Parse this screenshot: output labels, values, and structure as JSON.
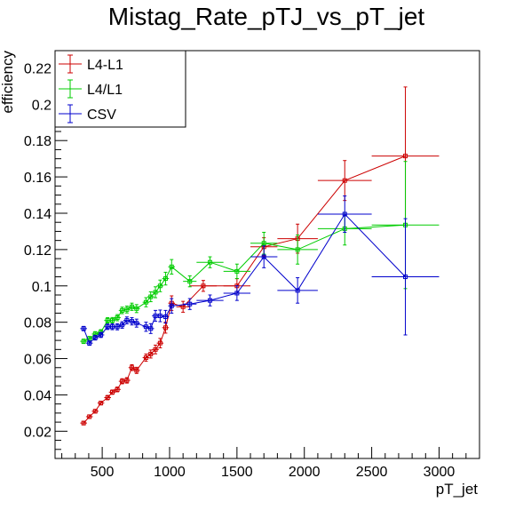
{
  "chart_data": {
    "type": "line",
    "title": "Mistag_Rate_pTJ_vs_pT_jet",
    "xlabel": "pT_jet",
    "ylabel": "efficiency",
    "xlim": [
      150,
      3300
    ],
    "ylim": [
      0.005,
      0.2295
    ],
    "x_ticks": [
      500,
      1000,
      1500,
      2000,
      2500,
      3000
    ],
    "x_tick_labels": [
      "500",
      "1000",
      "1500",
      "2000",
      "2500",
      "3000"
    ],
    "y_ticks": [
      0.02,
      0.04,
      0.06,
      0.08,
      0.1,
      0.12,
      0.14,
      0.16,
      0.18,
      0.2,
      0.22
    ],
    "y_tick_labels": [
      "0.02",
      "0.04",
      "0.06",
      "0.08",
      "0.1",
      "0.12",
      "0.14",
      "0.16",
      "0.18",
      "0.2",
      "0.22"
    ],
    "grid": false,
    "legend_position": "top-left",
    "series": [
      {
        "name": "L4-L1",
        "color": "#cc0000",
        "points": [
          {
            "x": 362,
            "y": 0.0245,
            "xerr": 25,
            "yerr": 0.001
          },
          {
            "x": 405,
            "y": 0.028,
            "xerr": 25,
            "yerr": 0.001
          },
          {
            "x": 448,
            "y": 0.031,
            "xerr": 25,
            "yerr": 0.001
          },
          {
            "x": 490,
            "y": 0.0355,
            "xerr": 25,
            "yerr": 0.001
          },
          {
            "x": 540,
            "y": 0.0385,
            "xerr": 25,
            "yerr": 0.0012
          },
          {
            "x": 575,
            "y": 0.0415,
            "xerr": 25,
            "yerr": 0.0012
          },
          {
            "x": 612,
            "y": 0.043,
            "xerr": 25,
            "yerr": 0.0013
          },
          {
            "x": 648,
            "y": 0.0475,
            "xerr": 25,
            "yerr": 0.0014
          },
          {
            "x": 683,
            "y": 0.048,
            "xerr": 25,
            "yerr": 0.0015
          },
          {
            "x": 720,
            "y": 0.055,
            "xerr": 25,
            "yerr": 0.0016
          },
          {
            "x": 755,
            "y": 0.0535,
            "xerr": 25,
            "yerr": 0.0017
          },
          {
            "x": 825,
            "y": 0.0605,
            "xerr": 25,
            "yerr": 0.002
          },
          {
            "x": 860,
            "y": 0.0625,
            "xerr": 25,
            "yerr": 0.0022
          },
          {
            "x": 895,
            "y": 0.065,
            "xerr": 25,
            "yerr": 0.0024
          },
          {
            "x": 930,
            "y": 0.0685,
            "xerr": 25,
            "yerr": 0.0026
          },
          {
            "x": 970,
            "y": 0.077,
            "xerr": 25,
            "yerr": 0.003
          },
          {
            "x": 1015,
            "y": 0.0905,
            "xerr": 25,
            "yerr": 0.004
          },
          {
            "x": 1100,
            "y": 0.0885,
            "xerr": 50,
            "yerr": 0.003
          },
          {
            "x": 1250,
            "y": 0.1,
            "xerr": 100,
            "yerr": 0.003
          },
          {
            "x": 1500,
            "y": 0.1,
            "xerr": 100,
            "yerr": 0.004
          },
          {
            "x": 1700,
            "y": 0.1215,
            "xerr": 100,
            "yerr": 0.005
          },
          {
            "x": 1950,
            "y": 0.126,
            "xerr": 150,
            "yerr": 0.008
          },
          {
            "x": 2300,
            "y": 0.158,
            "xerr": 200,
            "yerr": 0.011
          },
          {
            "x": 2750,
            "y": 0.1715,
            "xerr": 250,
            "yerr": 0.038
          }
        ]
      },
      {
        "name": "L4/L1",
        "color": "#00cc00",
        "points": [
          {
            "x": 362,
            "y": 0.0695,
            "xerr": 25,
            "yerr": 0.0012
          },
          {
            "x": 405,
            "y": 0.071,
            "xerr": 25,
            "yerr": 0.0012
          },
          {
            "x": 448,
            "y": 0.0735,
            "xerr": 25,
            "yerr": 0.0013
          },
          {
            "x": 490,
            "y": 0.0745,
            "xerr": 25,
            "yerr": 0.0014
          },
          {
            "x": 540,
            "y": 0.081,
            "xerr": 25,
            "yerr": 0.0015
          },
          {
            "x": 575,
            "y": 0.081,
            "xerr": 25,
            "yerr": 0.0016
          },
          {
            "x": 612,
            "y": 0.0825,
            "xerr": 25,
            "yerr": 0.0017
          },
          {
            "x": 648,
            "y": 0.0865,
            "xerr": 25,
            "yerr": 0.0018
          },
          {
            "x": 683,
            "y": 0.087,
            "xerr": 25,
            "yerr": 0.0019
          },
          {
            "x": 720,
            "y": 0.0885,
            "xerr": 25,
            "yerr": 0.002
          },
          {
            "x": 755,
            "y": 0.0875,
            "xerr": 25,
            "yerr": 0.0022
          },
          {
            "x": 825,
            "y": 0.091,
            "xerr": 25,
            "yerr": 0.0025
          },
          {
            "x": 860,
            "y": 0.094,
            "xerr": 25,
            "yerr": 0.0027
          },
          {
            "x": 895,
            "y": 0.0965,
            "xerr": 25,
            "yerr": 0.003
          },
          {
            "x": 930,
            "y": 0.1,
            "xerr": 25,
            "yerr": 0.0032
          },
          {
            "x": 970,
            "y": 0.104,
            "xerr": 25,
            "yerr": 0.0035
          },
          {
            "x": 1015,
            "y": 0.1105,
            "xerr": 25,
            "yerr": 0.004
          },
          {
            "x": 1150,
            "y": 0.1025,
            "xerr": 50,
            "yerr": 0.003
          },
          {
            "x": 1300,
            "y": 0.113,
            "xerr": 100,
            "yerr": 0.003
          },
          {
            "x": 1500,
            "y": 0.108,
            "xerr": 100,
            "yerr": 0.004
          },
          {
            "x": 1700,
            "y": 0.1235,
            "xerr": 100,
            "yerr": 0.006
          },
          {
            "x": 1950,
            "y": 0.12,
            "xerr": 150,
            "yerr": 0.008
          },
          {
            "x": 2300,
            "y": 0.1315,
            "xerr": 200,
            "yerr": 0.009
          },
          {
            "x": 2750,
            "y": 0.1335,
            "xerr": 250,
            "yerr": 0.035
          }
        ]
      },
      {
        "name": "CSV",
        "color": "#0000cc",
        "points": [
          {
            "x": 362,
            "y": 0.0765,
            "xerr": 25,
            "yerr": 0.0012
          },
          {
            "x": 405,
            "y": 0.0685,
            "xerr": 25,
            "yerr": 0.0012
          },
          {
            "x": 448,
            "y": 0.0715,
            "xerr": 25,
            "yerr": 0.0013
          },
          {
            "x": 490,
            "y": 0.073,
            "xerr": 25,
            "yerr": 0.0014
          },
          {
            "x": 540,
            "y": 0.0775,
            "xerr": 25,
            "yerr": 0.0015
          },
          {
            "x": 575,
            "y": 0.0775,
            "xerr": 25,
            "yerr": 0.0016
          },
          {
            "x": 612,
            "y": 0.0775,
            "xerr": 25,
            "yerr": 0.0017
          },
          {
            "x": 648,
            "y": 0.0785,
            "xerr": 25,
            "yerr": 0.0018
          },
          {
            "x": 683,
            "y": 0.081,
            "xerr": 25,
            "yerr": 0.0019
          },
          {
            "x": 720,
            "y": 0.0805,
            "xerr": 25,
            "yerr": 0.002
          },
          {
            "x": 755,
            "y": 0.0795,
            "xerr": 25,
            "yerr": 0.0022
          },
          {
            "x": 825,
            "y": 0.0775,
            "xerr": 25,
            "yerr": 0.0025
          },
          {
            "x": 860,
            "y": 0.0765,
            "xerr": 25,
            "yerr": 0.0027
          },
          {
            "x": 895,
            "y": 0.0835,
            "xerr": 25,
            "yerr": 0.003
          },
          {
            "x": 930,
            "y": 0.0835,
            "xerr": 25,
            "yerr": 0.0032
          },
          {
            "x": 970,
            "y": 0.083,
            "xerr": 25,
            "yerr": 0.0035
          },
          {
            "x": 1015,
            "y": 0.089,
            "xerr": 25,
            "yerr": 0.004
          },
          {
            "x": 1150,
            "y": 0.09,
            "xerr": 50,
            "yerr": 0.003
          },
          {
            "x": 1300,
            "y": 0.092,
            "xerr": 100,
            "yerr": 0.003
          },
          {
            "x": 1500,
            "y": 0.096,
            "xerr": 100,
            "yerr": 0.004
          },
          {
            "x": 1700,
            "y": 0.116,
            "xerr": 100,
            "yerr": 0.006
          },
          {
            "x": 1950,
            "y": 0.0975,
            "xerr": 150,
            "yerr": 0.007
          },
          {
            "x": 2300,
            "y": 0.1395,
            "xerr": 200,
            "yerr": 0.01
          },
          {
            "x": 2750,
            "y": 0.105,
            "xerr": 250,
            "yerr": 0.032
          }
        ]
      }
    ]
  }
}
